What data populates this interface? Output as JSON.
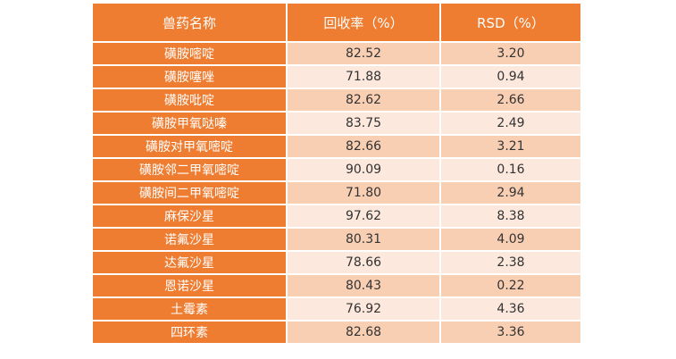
{
  "table": {
    "headers": [
      "兽药名称",
      "回收率（%）",
      "RSD（%）"
    ],
    "rows": [
      {
        "name": "磺胺嘧啶",
        "recovery": "82.52",
        "rsd": "3.20"
      },
      {
        "name": "磺胺噻唑",
        "recovery": "71.88",
        "rsd": "0.94"
      },
      {
        "name": "磺胺吡啶",
        "recovery": "82.62",
        "rsd": "2.66"
      },
      {
        "name": "磺胺甲氧哒嗪",
        "recovery": "83.75",
        "rsd": "2.49"
      },
      {
        "name": "磺胺对甲氧嘧啶",
        "recovery": "82.66",
        "rsd": "3.21"
      },
      {
        "name": "磺胺邻二甲氧嘧啶",
        "recovery": "90.09",
        "rsd": "0.16"
      },
      {
        "name": "磺胺间二甲氧嘧啶",
        "recovery": "71.80",
        "rsd": "2.94"
      },
      {
        "name": "麻保沙星",
        "recovery": "97.62",
        "rsd": "8.38"
      },
      {
        "name": "诺氟沙星",
        "recovery": "80.31",
        "rsd": "4.09"
      },
      {
        "name": "达氟沙星",
        "recovery": "78.66",
        "rsd": "2.38"
      },
      {
        "name": "恩诺沙星",
        "recovery": "80.43",
        "rsd": "0.22"
      },
      {
        "name": "土霉素",
        "recovery": "76.92",
        "rsd": "4.36"
      },
      {
        "name": "四环素",
        "recovery": "82.68",
        "rsd": "3.36"
      }
    ]
  },
  "colors": {
    "header_bg": "#ee7d31",
    "name_cell_bg": "#ee7d31",
    "row_odd_bg": "#f9cfb4",
    "row_even_bg": "#fce8dc"
  }
}
